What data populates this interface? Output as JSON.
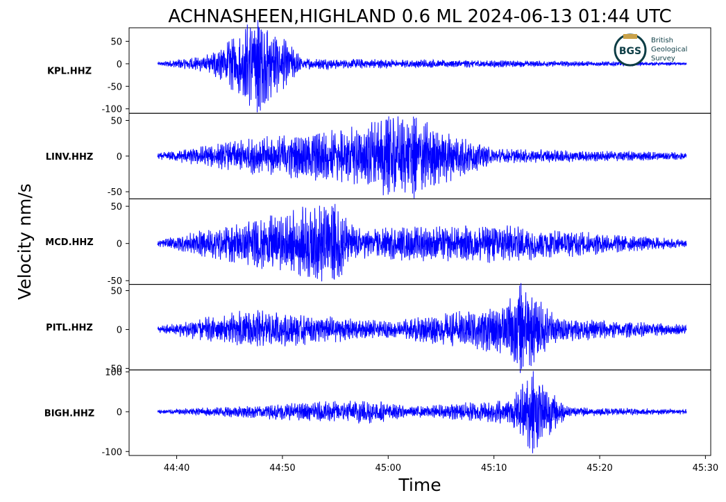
{
  "logo": {
    "abbrev": "BGS",
    "line1": "British",
    "line2": "Geological",
    "line3": "Survey",
    "color": "#0d3d45",
    "accent": "#c9a24a"
  },
  "chart_data": {
    "type": "line",
    "title": "ACHNASHEEN,HIGHLAND 0.6 ML   2024-06-13 01:44 UTC",
    "xlabel": "Time",
    "ylabel": "Velocity nm/s",
    "line_color": "#0000ff",
    "x_tick_labels": [
      "44:40",
      "44:50",
      "45:00",
      "45:10",
      "45:20",
      "45:30"
    ],
    "x_tick_values_s": [
      40,
      50,
      60,
      70,
      80,
      90
    ],
    "x_range_s": [
      35.5,
      90.5
    ],
    "trace_time_range_s": [
      38.2,
      88.2
    ],
    "panels": [
      {
        "name": "KPL.HHZ",
        "ylim": [
          -110,
          80
        ],
        "yticks": [
          50,
          0,
          -50,
          -100
        ],
        "ytick_labels": [
          "50",
          "0",
          "-50",
          "-100"
        ],
        "features": [
          {
            "t": 38.2,
            "amp": 3
          },
          {
            "t": 43.0,
            "amp": 20
          },
          {
            "t": 47.7,
            "amp": 105
          },
          {
            "t": 52.0,
            "amp": 12
          },
          {
            "t": 88.2,
            "amp": 3
          }
        ]
      },
      {
        "name": "LINV.HHZ",
        "ylim": [
          -60,
          60
        ],
        "yticks": [
          50,
          0,
          -50
        ],
        "ytick_labels": [
          "50",
          "0",
          "-50"
        ],
        "features": [
          {
            "t": 38.2,
            "amp": 4
          },
          {
            "t": 47.5,
            "amp": 25
          },
          {
            "t": 57.0,
            "amp": 40
          },
          {
            "t": 60.0,
            "amp": 55
          },
          {
            "t": 62.5,
            "amp": 55
          },
          {
            "t": 70.0,
            "amp": 10
          },
          {
            "t": 88.2,
            "amp": 5
          }
        ]
      },
      {
        "name": "MCD.HHZ",
        "ylim": [
          -55,
          60
        ],
        "yticks": [
          50,
          0,
          -50
        ],
        "ytick_labels": [
          "50",
          "0",
          "-50"
        ],
        "features": [
          {
            "t": 38.2,
            "amp": 4
          },
          {
            "t": 54.9,
            "amp": 55
          },
          {
            "t": 57.0,
            "amp": 20
          },
          {
            "t": 70.0,
            "amp": 25
          },
          {
            "t": 88.2,
            "amp": 5
          }
        ]
      },
      {
        "name": "PITL.HHZ",
        "ylim": [
          -52,
          58
        ],
        "yticks": [
          50,
          0,
          -50
        ],
        "ytick_labels": [
          "50",
          "0",
          "-50"
        ],
        "features": [
          {
            "t": 38.2,
            "amp": 4
          },
          {
            "t": 46.9,
            "amp": 25
          },
          {
            "t": 60.0,
            "amp": 10
          },
          {
            "t": 71.0,
            "amp": 30
          },
          {
            "t": 72.5,
            "amp": 58
          },
          {
            "t": 76.0,
            "amp": 15
          },
          {
            "t": 88.2,
            "amp": 6
          }
        ]
      },
      {
        "name": "BIGH.HHZ",
        "ylim": [
          -110,
          105
        ],
        "yticks": [
          100,
          0,
          -100
        ],
        "ytick_labels": [
          "100",
          "0",
          "-100"
        ],
        "features": [
          {
            "t": 38.2,
            "amp": 5
          },
          {
            "t": 58.5,
            "amp": 30
          },
          {
            "t": 62.0,
            "amp": 12
          },
          {
            "t": 71.5,
            "amp": 30
          },
          {
            "t": 73.7,
            "amp": 100
          },
          {
            "t": 77.0,
            "amp": 12
          },
          {
            "t": 88.2,
            "amp": 6
          }
        ]
      }
    ]
  }
}
